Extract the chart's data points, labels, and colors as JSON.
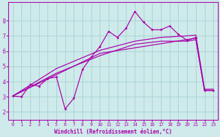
{
  "background_color": "#ceeaea",
  "grid_color": "#aad4d4",
  "line_color": "#aa00aa",
  "xlabel": "Windchill (Refroidissement éolien,°C)",
  "xlim": [
    -0.5,
    23.5
  ],
  "ylim": [
    1.5,
    9.2
  ],
  "yticks": [
    2,
    3,
    4,
    5,
    6,
    7,
    8
  ],
  "xticks": [
    0,
    1,
    2,
    3,
    4,
    5,
    6,
    7,
    8,
    9,
    10,
    11,
    12,
    13,
    14,
    15,
    16,
    17,
    18,
    19,
    20,
    21,
    22,
    23
  ],
  "series1_x": [
    0,
    1,
    2,
    3,
    4,
    5,
    6,
    7,
    8,
    9,
    10,
    11,
    12,
    13,
    14,
    15,
    16,
    17,
    18,
    19,
    20,
    21,
    22,
    23
  ],
  "series1_y": [
    3.05,
    3.0,
    3.8,
    3.7,
    4.2,
    4.3,
    2.2,
    2.9,
    4.8,
    5.6,
    6.3,
    7.3,
    6.9,
    7.5,
    8.6,
    7.9,
    7.4,
    7.4,
    7.65,
    7.1,
    6.7,
    6.9,
    3.4,
    3.4
  ],
  "series2_x": [
    0,
    10,
    21,
    22,
    23
  ],
  "series2_y": [
    3.05,
    5.85,
    6.85,
    3.4,
    3.4
  ],
  "series3_x": [
    0,
    5,
    10,
    14,
    17,
    20,
    21,
    22,
    23
  ],
  "series3_y": [
    3.05,
    4.55,
    5.7,
    6.45,
    6.65,
    6.65,
    6.75,
    3.4,
    3.4
  ],
  "series4_x": [
    0,
    5,
    10,
    14,
    17,
    20,
    21,
    22,
    23
  ],
  "series4_y": [
    3.05,
    4.85,
    6.05,
    6.65,
    6.9,
    7.0,
    7.05,
    3.5,
    3.5
  ]
}
